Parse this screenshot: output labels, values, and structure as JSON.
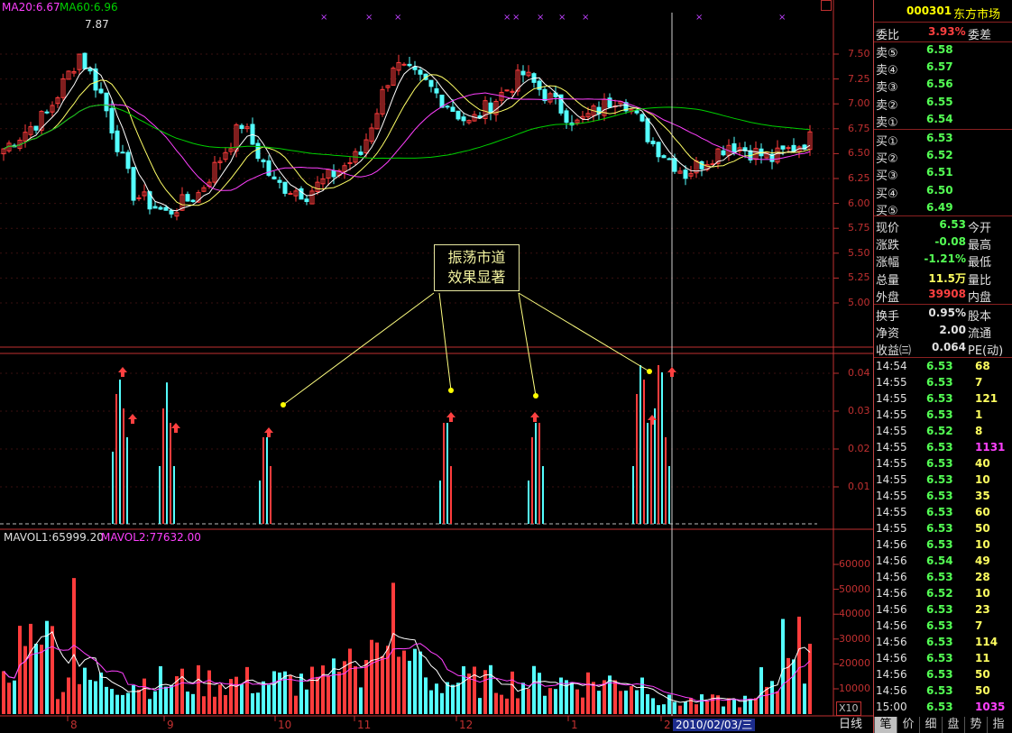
{
  "header": {
    "ma20_label": "MA20:6.67",
    "ma60_label": "MA60:6.96",
    "high_marker": "7.87",
    "corner_icon": "window-restore-icon"
  },
  "annotation": {
    "line1": "振荡市道",
    "line2": "效果显著"
  },
  "price_axis": [
    "7.50",
    "7.25",
    "7.00",
    "6.75",
    "6.50",
    "6.25",
    "6.00",
    "5.75",
    "5.50",
    "5.25",
    "5.00"
  ],
  "indicator_axis": [
    "0.04",
    "0.03",
    "0.02",
    "0.01"
  ],
  "volume": {
    "mavol1_label": "MAVOL1:65999.20",
    "mavol2_label": "MAVOL2:77632.00",
    "scale_label": "X10"
  },
  "volume_axis": [
    "60000",
    "50000",
    "40000",
    "30000",
    "20000",
    "10000"
  ],
  "date_axis": [
    "8",
    "9",
    "10",
    "11",
    "12",
    "1",
    "2"
  ],
  "cursor_date": "2010/02/03/三",
  "period_label": "日线",
  "quote": {
    "code": "000301",
    "name": "东方市场",
    "weibi_label": "委比",
    "weibi_value": "3.93%",
    "weicha_label": "委差",
    "asks": [
      {
        "label": "卖⑤",
        "price": "6.58"
      },
      {
        "label": "卖④",
        "price": "6.57"
      },
      {
        "label": "卖③",
        "price": "6.56"
      },
      {
        "label": "卖②",
        "price": "6.55"
      },
      {
        "label": "卖①",
        "price": "6.54"
      }
    ],
    "bids": [
      {
        "label": "买①",
        "price": "6.53"
      },
      {
        "label": "买②",
        "price": "6.52"
      },
      {
        "label": "买③",
        "price": "6.51"
      },
      {
        "label": "买④",
        "price": "6.50"
      },
      {
        "label": "买⑤",
        "price": "6.49"
      }
    ],
    "stats": [
      {
        "label": "现价",
        "value": "6.53",
        "right": "今开"
      },
      {
        "label": "涨跌",
        "value": "-0.08",
        "right": "最高"
      },
      {
        "label": "涨幅",
        "value": "-1.21%",
        "right": "最低"
      },
      {
        "label": "总量",
        "value": "11.5万",
        "right": "量比"
      },
      {
        "label": "外盘",
        "value": "39908",
        "right": "内盘"
      }
    ],
    "stats2": [
      {
        "label": "换手",
        "value": "0.95%",
        "right": "股本"
      },
      {
        "label": "净资",
        "value": "2.00",
        "right": "流通"
      },
      {
        "label": "收益㈢",
        "value": "0.064",
        "right": "PE(动)"
      }
    ]
  },
  "ticks": [
    {
      "time": "14:54",
      "price": "6.53",
      "vol": "68"
    },
    {
      "time": "14:55",
      "price": "6.53",
      "vol": "7"
    },
    {
      "time": "14:55",
      "price": "6.53",
      "vol": "121"
    },
    {
      "time": "14:55",
      "price": "6.53",
      "vol": "1"
    },
    {
      "time": "14:55",
      "price": "6.52",
      "vol": "8"
    },
    {
      "time": "14:55",
      "price": "6.53",
      "vol": "1131"
    },
    {
      "time": "14:55",
      "price": "6.53",
      "vol": "40"
    },
    {
      "time": "14:55",
      "price": "6.53",
      "vol": "10"
    },
    {
      "time": "14:55",
      "price": "6.53",
      "vol": "35"
    },
    {
      "time": "14:55",
      "price": "6.53",
      "vol": "60"
    },
    {
      "time": "14:55",
      "price": "6.53",
      "vol": "50"
    },
    {
      "time": "14:56",
      "price": "6.53",
      "vol": "10"
    },
    {
      "time": "14:56",
      "price": "6.54",
      "vol": "49"
    },
    {
      "time": "14:56",
      "price": "6.53",
      "vol": "28"
    },
    {
      "time": "14:56",
      "price": "6.52",
      "vol": "10"
    },
    {
      "time": "14:56",
      "price": "6.53",
      "vol": "23"
    },
    {
      "time": "14:56",
      "price": "6.53",
      "vol": "7"
    },
    {
      "time": "14:56",
      "price": "6.53",
      "vol": "114"
    },
    {
      "time": "14:56",
      "price": "6.53",
      "vol": "11"
    },
    {
      "time": "14:56",
      "price": "6.53",
      "vol": "50"
    },
    {
      "time": "14:56",
      "price": "6.53",
      "vol": "50"
    },
    {
      "time": "15:00",
      "price": "6.53",
      "vol": "1035"
    }
  ],
  "tabs": [
    "笔",
    "价",
    "细",
    "盘",
    "势",
    "指"
  ],
  "colors": {
    "up": "#ff3c3c",
    "down": "#54ffff",
    "ma_white": "#ffffff",
    "ma_yellow": "#ffff66",
    "ma_magenta": "#ff40ff",
    "ma_green": "#00d000",
    "axis": "#c03030",
    "label_yellow": "#ffff00"
  }
}
